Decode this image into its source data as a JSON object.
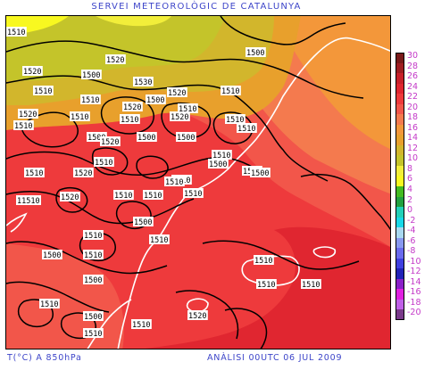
{
  "header": {
    "title": "SERVEI METEOROLÒGIC DE CATALUNYA"
  },
  "footer": {
    "variable": "T(°C) A 850hPa",
    "analysis": "ANÀLISI 00UTC 06 JUL 2009"
  },
  "legend": {
    "items": [
      {
        "label": "30",
        "color": "#7a1a1a"
      },
      {
        "label": "28",
        "color": "#a01e22"
      },
      {
        "label": "26",
        "color": "#c8202a"
      },
      {
        "label": "24",
        "color": "#e02630"
      },
      {
        "label": "22",
        "color": "#ee3a3c"
      },
      {
        "label": "20",
        "color": "#f2564a"
      },
      {
        "label": "18",
        "color": "#f47a4e"
      },
      {
        "label": "16",
        "color": "#f3973a"
      },
      {
        "label": "14",
        "color": "#e8a02c"
      },
      {
        "label": "12",
        "color": "#d2b62c"
      },
      {
        "label": "10",
        "color": "#c4c42a"
      },
      {
        "label": "8",
        "color": "#f2ee3a"
      },
      {
        "label": "6",
        "color": "#f8f820"
      },
      {
        "label": "4",
        "color": "#44bb22"
      },
      {
        "label": "2",
        "color": "#22a040"
      },
      {
        "label": "0",
        "color": "#22d0b8"
      },
      {
        "label": "-2",
        "color": "#18d8e8"
      },
      {
        "label": "-4",
        "color": "#a8d8f0"
      },
      {
        "label": "-6",
        "color": "#8898f0"
      },
      {
        "label": "-8",
        "color": "#6a6aee"
      },
      {
        "label": "-10",
        "color": "#4040e0"
      },
      {
        "label": "-12",
        "color": "#2222b8"
      },
      {
        "label": "-14",
        "color": "#8a20c8"
      },
      {
        "label": "-16",
        "color": "#e020e0"
      },
      {
        "label": "-18",
        "color": "#c060e8"
      },
      {
        "label": "-20",
        "color": "#7a3a8a"
      }
    ]
  },
  "map": {
    "isobar_labels": [
      {
        "text": "1510"
      },
      {
        "text": "1500"
      },
      {
        "text": "1520"
      },
      {
        "text": "1520"
      },
      {
        "text": "1500"
      },
      {
        "text": "1510"
      },
      {
        "text": "1530"
      },
      {
        "text": "1520"
      },
      {
        "text": "1510"
      },
      {
        "text": "1500"
      },
      {
        "text": "1510"
      },
      {
        "text": "1520"
      },
      {
        "text": "1510"
      },
      {
        "text": "1520"
      },
      {
        "text": "1510"
      },
      {
        "text": "1510"
      },
      {
        "text": "1520"
      },
      {
        "text": "1510"
      },
      {
        "text": "1510"
      },
      {
        "text": "1500"
      },
      {
        "text": "1510"
      },
      {
        "text": "1500"
      },
      {
        "text": "1520"
      },
      {
        "text": "1500"
      },
      {
        "text": "1510"
      },
      {
        "text": "1510"
      },
      {
        "text": "1520"
      },
      {
        "text": "1510"
      },
      {
        "text": "1520"
      },
      {
        "text": "1510"
      },
      {
        "text": "1520"
      },
      {
        "text": "11510"
      },
      {
        "text": "1510"
      },
      {
        "text": "1510"
      },
      {
        "text": "1500"
      },
      {
        "text": "1500"
      },
      {
        "text": "1510"
      },
      {
        "text": "1500"
      },
      {
        "text": "1510"
      },
      {
        "text": "1500"
      },
      {
        "text": "1510"
      },
      {
        "text": "1510"
      },
      {
        "text": "1500"
      },
      {
        "text": "1510"
      },
      {
        "text": "1510"
      },
      {
        "text": "1510"
      },
      {
        "text": "1510"
      },
      {
        "text": "1500"
      },
      {
        "text": "1510"
      },
      {
        "text": "1510"
      },
      {
        "text": "1520"
      },
      {
        "text": "1510"
      }
    ]
  }
}
